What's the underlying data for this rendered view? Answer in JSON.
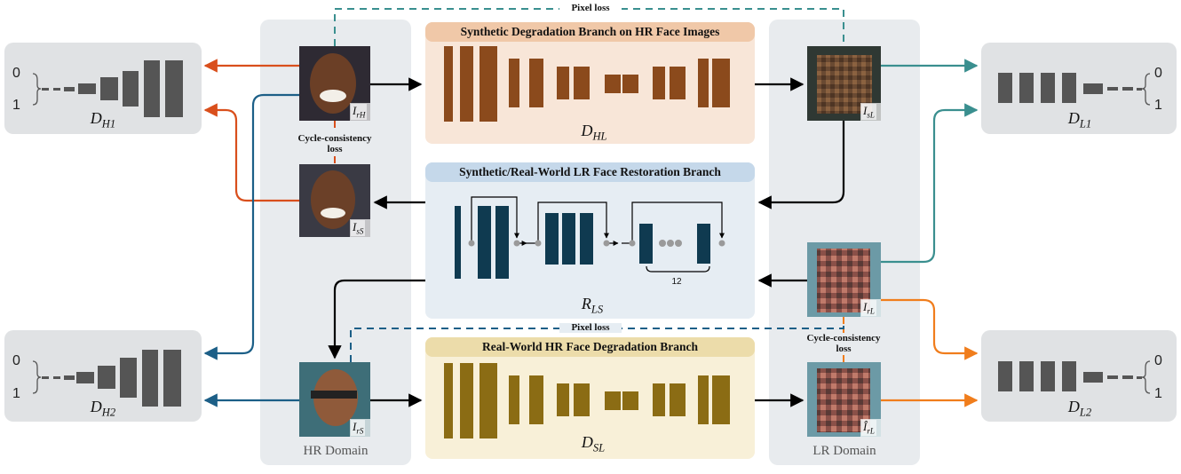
{
  "branches": {
    "synthetic_degradation": "Synthetic Degradation Branch on HR Face Images",
    "restoration": "Synthetic/Real-World LR Face Restoration Branch",
    "real_degradation": "Real-World HR Face Degradation Branch"
  },
  "networks": {
    "dhl": {
      "base": "D",
      "sub": "HL"
    },
    "rls": {
      "base": "R",
      "sub": "LS"
    },
    "dsl": {
      "base": "D",
      "sub": "SL"
    }
  },
  "discriminators": {
    "dh1": {
      "base": "D",
      "sub": "H1"
    },
    "dh2": {
      "base": "D",
      "sub": "H2"
    },
    "dl1": {
      "base": "D",
      "sub": "L1"
    },
    "dl2": {
      "base": "D",
      "sub": "L2"
    },
    "tick_zero": "0",
    "tick_one": "1"
  },
  "domains": {
    "hr": "HR Domain",
    "lr": "LR Domain"
  },
  "losses": {
    "pixel_top": "Pixel loss",
    "pixel_mid": "Pixel loss",
    "cycle_hr_line1": "Cycle-consistency",
    "cycle_hr_line2": "loss",
    "cycle_lr_line1": "Cycle-consistency",
    "cycle_lr_line2": "loss"
  },
  "images": {
    "irh": {
      "base": "I",
      "sub": "rH"
    },
    "iss": {
      "base": "I",
      "sub": "sS"
    },
    "irs": {
      "base": "I",
      "sub": "rS"
    },
    "isl": {
      "base": "I",
      "sub": "sL"
    },
    "irl": {
      "base": "I",
      "sub": "rL"
    },
    "irl_hat": {
      "base": "Î",
      "sub": "rL"
    }
  },
  "repeat_count": "12",
  "colors": {
    "panel": "#e8ebee",
    "disc_bg": "#e0e2e4",
    "dark_block": "#555555",
    "brown": "#8b4a1c",
    "brown_bg": "#f8e6d8",
    "brown_title": "#f0c8a8",
    "navy": "#0f3a50",
    "navy_bg": "#e6edf3",
    "navy_title": "#c5d8ea",
    "olive": "#8b6c14",
    "olive_bg": "#f8f0d8",
    "olive_title": "#ecdcaa",
    "red": "#d94f1c",
    "orange": "#f07d1c",
    "blue": "#1c5f87",
    "teal": "#3a8f8f"
  }
}
